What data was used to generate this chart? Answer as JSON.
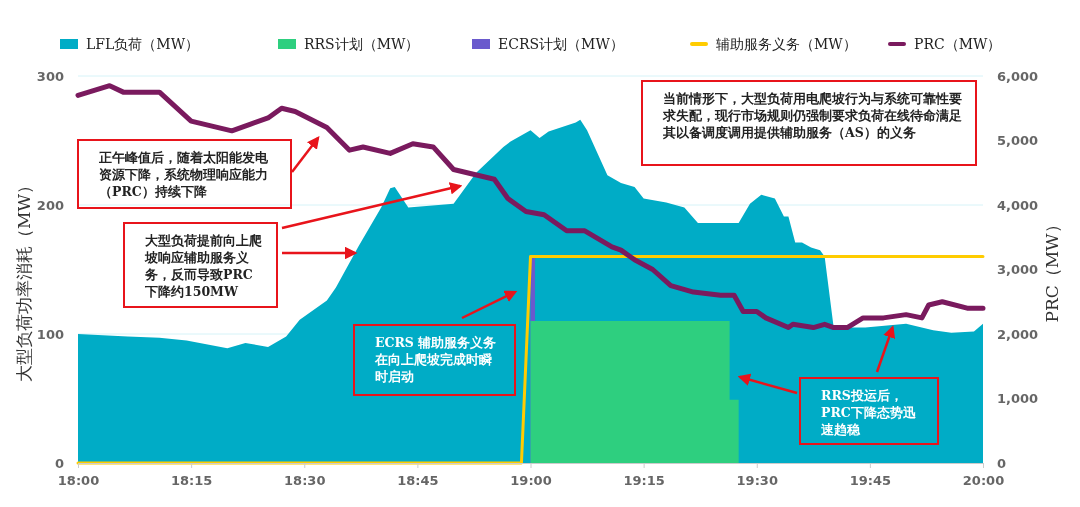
{
  "chart_data": {
    "type": "area",
    "ylabel": "大型负荷功率消耗（MW）",
    "y2label": "PRC（MW）",
    "xlim": [
      18,
      20
    ],
    "xticks": [
      {
        "value": 18,
        "label": "18:00"
      },
      {
        "value": 18.25,
        "label": "18:15"
      },
      {
        "value": 18.5,
        "label": "18:30"
      },
      {
        "value": 18.75,
        "label": "18:45"
      },
      {
        "value": 19,
        "label": "19:00"
      },
      {
        "value": 19.25,
        "label": "19:15"
      },
      {
        "value": 19.5,
        "label": "19:30"
      },
      {
        "value": 19.75,
        "label": "19:45"
      },
      {
        "value": 20,
        "label": "20:00"
      }
    ],
    "ylim": [
      0,
      300
    ],
    "yticks": [
      0,
      100,
      200,
      300
    ],
    "y2lim": [
      0,
      6000
    ],
    "y2ticks": [
      0,
      {
        "value": 1000,
        "label": "1,000"
      },
      {
        "value": 2000,
        "label": "2,000"
      },
      {
        "value": 3000,
        "label": "3,000"
      },
      {
        "value": 4000,
        "label": "4,000"
      },
      {
        "value": 5000,
        "label": "5,000"
      },
      {
        "value": 6000,
        "label": "6,000"
      }
    ],
    "grid": "y",
    "legend": "top",
    "series": [
      {
        "name": "LFL负荷（MW）",
        "color": "#00acc6",
        "x": [
          18.0,
          18.11,
          18.18,
          18.24,
          18.33,
          18.37,
          18.42,
          18.46,
          18.49,
          18.55,
          18.57,
          18.62,
          18.67,
          18.69,
          18.7,
          18.73,
          18.83,
          18.88,
          18.94,
          18.955,
          19.0,
          19.02,
          19.04,
          19.1,
          19.11,
          19.125,
          19.17,
          19.2,
          19.23,
          19.25,
          19.3,
          19.34,
          19.37,
          19.46,
          19.485,
          19.51,
          19.54,
          19.56,
          19.57,
          19.585,
          19.6,
          19.62,
          19.64,
          19.65,
          19.67,
          19.74,
          19.83,
          19.89,
          19.93,
          19.98,
          20.0
        ],
        "values": [
          100,
          98,
          97,
          95,
          89,
          93,
          90,
          98,
          111,
          126,
          136,
          168,
          198,
          213,
          214,
          198,
          201,
          225,
          245,
          249,
          258,
          252,
          257,
          264,
          266,
          258,
          223,
          217,
          214,
          205,
          202,
          198,
          186,
          186,
          201,
          208,
          205,
          191,
          191,
          171,
          171,
          167,
          165,
          160,
          105,
          105,
          108,
          103,
          101,
          102,
          108
        ]
      },
      {
        "name": "ECRS计划（MW）",
        "color": "#6a5acd",
        "x": [
          19.0,
          19.01
        ],
        "values": [
          160,
          160
        ]
      },
      {
        "name": "RRS计划（MW）",
        "color": "#2ecf7f",
        "x": [
          19.0,
          19.44,
          19.44,
          19.46,
          19.46
        ],
        "values": [
          110,
          110,
          49,
          49,
          0
        ]
      },
      {
        "name": "辅助服务义务（MW）",
        "type": "line",
        "color": "#ffcc00",
        "x": [
          18,
          18.98,
          19.0,
          20
        ],
        "values": [
          0,
          0,
          160,
          160
        ]
      },
      {
        "name": "PRC（MW）",
        "type": "line",
        "axis": "y2",
        "color": "#7a1a5e",
        "x": [
          18.0,
          18.07,
          18.1,
          18.18,
          18.25,
          18.34,
          18.38,
          18.42,
          18.45,
          18.48,
          18.55,
          18.6,
          18.63,
          18.69,
          18.74,
          18.785,
          18.83,
          18.92,
          18.95,
          18.99,
          19.03,
          19.08,
          19.12,
          19.18,
          19.2,
          19.23,
          19.27,
          19.31,
          19.36,
          19.42,
          19.45,
          19.47,
          19.5,
          19.52,
          19.57,
          19.58,
          19.625,
          19.65,
          19.67,
          19.7,
          19.735,
          19.78,
          19.83,
          19.865,
          19.88,
          19.91,
          19.965,
          20.0
        ],
        "values": [
          5700,
          5850,
          5750,
          5750,
          5300,
          5150,
          5250,
          5350,
          5500,
          5450,
          5200,
          4850,
          4900,
          4800,
          4950,
          4900,
          4550,
          4400,
          4100,
          3900,
          3850,
          3600,
          3600,
          3350,
          3300,
          3150,
          3000,
          2750,
          2650,
          2600,
          2600,
          2350,
          2350,
          2250,
          2100,
          2150,
          2100,
          2150,
          2100,
          2100,
          2250,
          2250,
          2300,
          2250,
          2450,
          2500,
          2400,
          2400
        ]
      }
    ],
    "annotations": [
      "正午峰值后，随着太阳能发电资源下降，系统物理响应能力（PRC）持续下降",
      "大型负荷提前向上爬坡响应辅助服务义务，反而导致PRC下降约150MW",
      "ECRS 辅助服务义务在向上爬坡完成时瞬时启动",
      "当前情形下，大型负荷用电爬坡行为与系统可靠性要求失配，现行市场规则仍强制要求负荷在线待命满足其以备调度调用提供辅助服务（AS）的义务",
      {
        "text": "RRS投运后，PRC下降态势迅速趋稳",
        "x": 19.8,
        "y": 105
      }
    ]
  }
}
